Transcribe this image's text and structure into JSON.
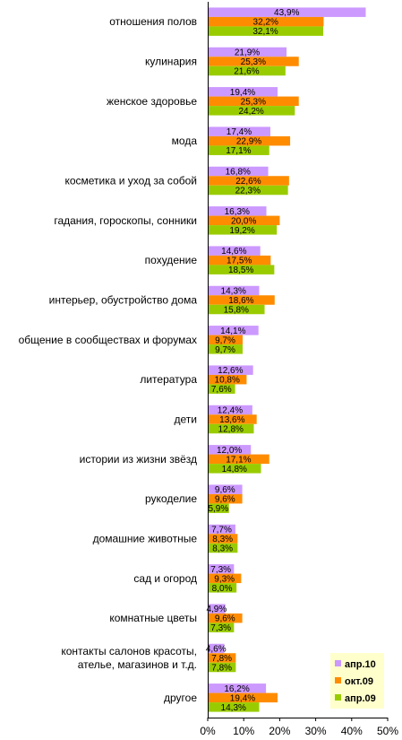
{
  "chart_data": {
    "type": "bar",
    "orientation": "horizontal",
    "categories": [
      "отношения полов",
      "кулинария",
      "женское здоровье",
      "мода",
      "косметика и уход за собой",
      "гадания, гороскопы, сонники",
      "похудение",
      "интерьер, обустройство дома",
      "общение в сообществах и форумах",
      "литература",
      "дети",
      "истории из жизни звёзд",
      "рукоделие",
      "домашние животные",
      "сад и огород",
      "комнатные цветы",
      "контакты салонов красоты, ателье, магазинов и т.д.",
      "другое"
    ],
    "series": [
      {
        "name": "апр.10",
        "color": "#cc99ff",
        "values": [
          43.9,
          21.9,
          19.4,
          17.4,
          16.8,
          16.3,
          14.6,
          14.3,
          14.1,
          12.6,
          12.4,
          12.0,
          9.6,
          7.7,
          7.3,
          4.9,
          4.6,
          16.2
        ],
        "labels": [
          "43,9%",
          "21,9%",
          "19,4%",
          "17,4%",
          "16,8%",
          "16,3%",
          "14,6%",
          "14,3%",
          "14,1%",
          "12,6%",
          "12,4%",
          "12,0%",
          "9,6%",
          "7,7%",
          "7,3%",
          "4,9%",
          "4,6%",
          "16,2%"
        ]
      },
      {
        "name": "окт.09",
        "color": "#ff8c00",
        "values": [
          32.2,
          25.3,
          25.3,
          22.9,
          22.6,
          20.0,
          17.5,
          18.6,
          9.7,
          10.8,
          13.6,
          17.1,
          9.6,
          8.3,
          9.3,
          9.6,
          7.8,
          19.4
        ],
        "labels": [
          "32,2%",
          "25,3%",
          "25,3%",
          "22,9%",
          "22,6%",
          "20,0%",
          "17,5%",
          "18,6%",
          "9,7%",
          "10,8%",
          "13,6%",
          "17,1%",
          "9,6%",
          "8,3%",
          "9,3%",
          "9,6%",
          "7,8%",
          "19,4%"
        ]
      },
      {
        "name": "апр.09",
        "color": "#99cc00",
        "values": [
          32.1,
          21.6,
          24.2,
          17.1,
          22.3,
          19.2,
          18.5,
          15.8,
          9.7,
          7.6,
          12.8,
          14.8,
          5.9,
          8.3,
          8.0,
          7.3,
          7.8,
          14.3
        ],
        "labels": [
          "32,1%",
          "21,6%",
          "24,2%",
          "17,1%",
          "22,3%",
          "19,2%",
          "18,5%",
          "15,8%",
          "9,7%",
          "7,6%",
          "12,8%",
          "14,8%",
          "5,9%",
          "8,3%",
          "8,0%",
          "7,3%",
          "7,8%",
          "14,3%"
        ]
      }
    ],
    "xlim": [
      0,
      50
    ],
    "ticks": [
      0,
      10,
      20,
      30,
      40,
      50
    ],
    "tick_labels": [
      "0%",
      "10%",
      "20%",
      "30%",
      "40%",
      "50%"
    ],
    "grid": false,
    "legend_position": "bottom-right",
    "legend_background": "#ffffcc"
  }
}
